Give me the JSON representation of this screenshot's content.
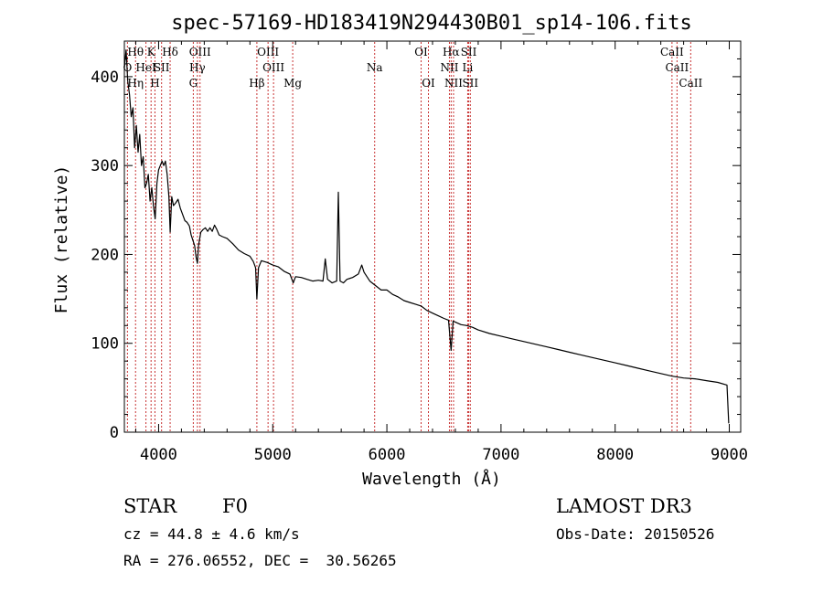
{
  "chart_data": {
    "type": "line",
    "title": "spec-57169-HD183419N294430B01_sp14-106.fits",
    "xlabel": "Wavelength (Å)",
    "ylabel": "Flux (relative)",
    "xlim": [
      3700,
      9100
    ],
    "ylim": [
      0,
      440
    ],
    "x_ticks": [
      4000,
      5000,
      6000,
      7000,
      8000,
      9000
    ],
    "y_ticks": [
      0,
      100,
      200,
      300,
      400
    ],
    "x_tick_labels": [
      "4000",
      "5000",
      "6000",
      "7000",
      "8000",
      "9000"
    ],
    "y_tick_labels": [
      "0",
      "100",
      "200",
      "300",
      "400"
    ],
    "series": [
      {
        "name": "flux",
        "points": [
          [
            3700,
            410
          ],
          [
            3715,
            430
          ],
          [
            3730,
            395
          ],
          [
            3745,
            380
          ],
          [
            3760,
            355
          ],
          [
            3775,
            365
          ],
          [
            3790,
            320
          ],
          [
            3805,
            345
          ],
          [
            3820,
            315
          ],
          [
            3835,
            335
          ],
          [
            3850,
            300
          ],
          [
            3865,
            310
          ],
          [
            3880,
            275
          ],
          [
            3895,
            280
          ],
          [
            3910,
            290
          ],
          [
            3925,
            260
          ],
          [
            3940,
            275
          ],
          [
            3955,
            255
          ],
          [
            3970,
            240
          ],
          [
            3985,
            280
          ],
          [
            4000,
            295
          ],
          [
            4015,
            300
          ],
          [
            4030,
            305
          ],
          [
            4045,
            300
          ],
          [
            4060,
            305
          ],
          [
            4075,
            290
          ],
          [
            4090,
            265
          ],
          [
            4101,
            225
          ],
          [
            4115,
            265
          ],
          [
            4130,
            255
          ],
          [
            4150,
            258
          ],
          [
            4170,
            262
          ],
          [
            4190,
            252
          ],
          [
            4210,
            245
          ],
          [
            4230,
            238
          ],
          [
            4250,
            236
          ],
          [
            4270,
            232
          ],
          [
            4285,
            222
          ],
          [
            4300,
            216
          ],
          [
            4315,
            210
          ],
          [
            4330,
            196
          ],
          [
            4340,
            190
          ],
          [
            4350,
            210
          ],
          [
            4370,
            225
          ],
          [
            4390,
            228
          ],
          [
            4410,
            230
          ],
          [
            4430,
            226
          ],
          [
            4450,
            230
          ],
          [
            4470,
            226
          ],
          [
            4490,
            233
          ],
          [
            4510,
            228
          ],
          [
            4530,
            222
          ],
          [
            4560,
            220
          ],
          [
            4600,
            218
          ],
          [
            4650,
            212
          ],
          [
            4700,
            205
          ],
          [
            4750,
            201
          ],
          [
            4800,
            198
          ],
          [
            4830,
            192
          ],
          [
            4850,
            185
          ],
          [
            4861,
            150
          ],
          [
            4875,
            185
          ],
          [
            4900,
            193
          ],
          [
            4950,
            191
          ],
          [
            5000,
            188
          ],
          [
            5050,
            186
          ],
          [
            5100,
            181
          ],
          [
            5150,
            178
          ],
          [
            5180,
            168
          ],
          [
            5200,
            175
          ],
          [
            5250,
            174
          ],
          [
            5300,
            172
          ],
          [
            5350,
            170
          ],
          [
            5400,
            171
          ],
          [
            5440,
            170
          ],
          [
            5460,
            195
          ],
          [
            5480,
            172
          ],
          [
            5520,
            168
          ],
          [
            5560,
            170
          ],
          [
            5575,
            270
          ],
          [
            5590,
            170
          ],
          [
            5620,
            168
          ],
          [
            5650,
            172
          ],
          [
            5700,
            174
          ],
          [
            5750,
            178
          ],
          [
            5780,
            188
          ],
          [
            5800,
            180
          ],
          [
            5850,
            170
          ],
          [
            5890,
            166
          ],
          [
            5950,
            160
          ],
          [
            6000,
            160
          ],
          [
            6050,
            155
          ],
          [
            6100,
            152
          ],
          [
            6150,
            148
          ],
          [
            6200,
            146
          ],
          [
            6250,
            144
          ],
          [
            6300,
            142
          ],
          [
            6350,
            137
          ],
          [
            6400,
            134
          ],
          [
            6450,
            131
          ],
          [
            6500,
            128
          ],
          [
            6540,
            126
          ],
          [
            6563,
            92
          ],
          [
            6580,
            125
          ],
          [
            6650,
            121
          ],
          [
            6700,
            120
          ],
          [
            6750,
            118
          ],
          [
            6800,
            115
          ],
          [
            6900,
            111
          ],
          [
            7000,
            108
          ],
          [
            7100,
            105
          ],
          [
            7200,
            102
          ],
          [
            7300,
            99
          ],
          [
            7400,
            96
          ],
          [
            7500,
            93
          ],
          [
            7600,
            90
          ],
          [
            7700,
            87
          ],
          [
            7800,
            84
          ],
          [
            7900,
            81
          ],
          [
            8000,
            78
          ],
          [
            8100,
            75
          ],
          [
            8200,
            72
          ],
          [
            8300,
            69
          ],
          [
            8400,
            66
          ],
          [
            8500,
            63
          ],
          [
            8600,
            61
          ],
          [
            8700,
            60
          ],
          [
            8800,
            58
          ],
          [
            8900,
            56
          ],
          [
            8980,
            53
          ],
          [
            8995,
            10
          ]
        ]
      }
    ],
    "line_markers": [
      {
        "x": 3727,
        "labels": [
          "O"
        ]
      },
      {
        "x": 3798,
        "labels": [
          "Hθ",
          "Hη"
        ]
      },
      {
        "x": 3889,
        "labels": [
          "HeI"
        ]
      },
      {
        "x": 3934,
        "labels": [
          "K"
        ]
      },
      {
        "x": 3968,
        "labels": [
          "H"
        ]
      },
      {
        "x": 4026,
        "labels": [
          "SII"
        ]
      },
      {
        "x": 4101,
        "labels": [
          "Hδ"
        ]
      },
      {
        "x": 4304,
        "labels": [
          "G"
        ]
      },
      {
        "x": 4340,
        "labels": [
          "Hγ"
        ]
      },
      {
        "x": 4363,
        "labels": [
          "OIII"
        ]
      },
      {
        "x": 4861,
        "labels": [
          "Hβ"
        ]
      },
      {
        "x": 4959,
        "labels": [
          "OIII"
        ]
      },
      {
        "x": 5007,
        "labels": [
          "OIII"
        ]
      },
      {
        "x": 5175,
        "labels": [
          "Mg"
        ]
      },
      {
        "x": 5893,
        "labels": [
          "Na"
        ]
      },
      {
        "x": 6300,
        "labels": [
          "OI"
        ]
      },
      {
        "x": 6364,
        "labels": [
          "OI"
        ]
      },
      {
        "x": 6548,
        "labels": [
          "NII"
        ]
      },
      {
        "x": 6563,
        "labels": [
          "Hα"
        ]
      },
      {
        "x": 6584,
        "labels": [
          "NII"
        ]
      },
      {
        "x": 6708,
        "labels": [
          "Li"
        ]
      },
      {
        "x": 6717,
        "labels": [
          "SII"
        ]
      },
      {
        "x": 6731,
        "labels": [
          "SII"
        ]
      },
      {
        "x": 8498,
        "labels": [
          "CaII"
        ]
      },
      {
        "x": 8542,
        "labels": [
          "CaII"
        ]
      },
      {
        "x": 8662,
        "labels": [
          "CaII"
        ]
      }
    ]
  },
  "info": {
    "object_type": "STAR",
    "subclass": "F0",
    "survey": "LAMOST DR3",
    "redshift": "cz = 44.8 ± 4.6 km/s",
    "obs_date": "Obs-Date: 20150526",
    "coords": "RA = 276.06552, DEC =  30.56265"
  },
  "colors": {
    "line": "#000000",
    "marker": "#c83232",
    "background": "#ffffff"
  }
}
